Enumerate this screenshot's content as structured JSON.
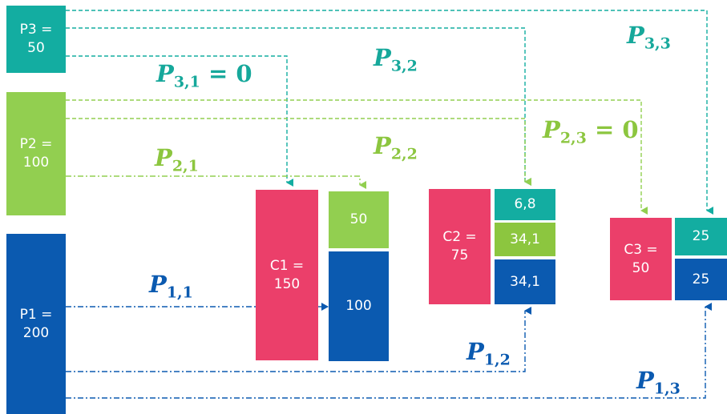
{
  "colors": {
    "teal": "#13ADA1",
    "light_green": "#92CF50",
    "lime": "#8CC63F",
    "blue": "#0B5AB0",
    "pink": "#EB3F6A",
    "label_teal": "#16A89B",
    "label_green": "#8CC63F",
    "label_blue": "#0B5AB0"
  },
  "producers": {
    "p3": "P3 =\n50",
    "p2": "P2 =\n100",
    "p1": "P1 =\n200"
  },
  "consumers": {
    "c1": {
      "label": "C1 =\n150",
      "parts": {
        "green": "50",
        "blue": "100"
      }
    },
    "c2": {
      "label": "C2 =\n75",
      "parts": {
        "teal": "6,8",
        "green": "34,1",
        "blue": "34,1"
      }
    },
    "c3": {
      "label": "C3 =\n50",
      "parts": {
        "teal": "25",
        "blue": "25"
      }
    }
  },
  "flows": {
    "p31": {
      "base": "P",
      "sub": "3,1",
      "suffix": " = 0"
    },
    "p32": {
      "base": "P",
      "sub": "3,2",
      "suffix": ""
    },
    "p33": {
      "base": "P",
      "sub": "3,3",
      "suffix": ""
    },
    "p21": {
      "base": "P",
      "sub": "2,1",
      "suffix": ""
    },
    "p22": {
      "base": "P",
      "sub": "2,2",
      "suffix": ""
    },
    "p23": {
      "base": "P",
      "sub": "2,3",
      "suffix": " = 0"
    },
    "p11": {
      "base": "P",
      "sub": "1,1",
      "suffix": ""
    },
    "p12": {
      "base": "P",
      "sub": "1,2",
      "suffix": ""
    },
    "p13": {
      "base": "P",
      "sub": "1,3",
      "suffix": ""
    }
  }
}
